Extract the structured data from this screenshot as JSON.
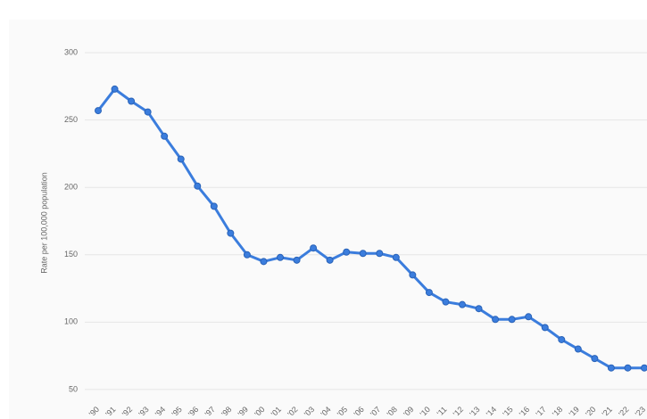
{
  "chart_data": {
    "type": "line",
    "y_label": "Rate per 100,000 population",
    "categories": [
      "'90",
      "'91",
      "'92",
      "'93",
      "'94",
      "'95",
      "'96",
      "'97",
      "'98",
      "'99",
      "'00",
      "'01",
      "'02",
      "'03",
      "'04",
      "'05",
      "'06",
      "'07",
      "'08",
      "'09",
      "'10",
      "'11",
      "'12",
      "'13",
      "'14",
      "'15",
      "'16",
      "'17",
      "'18",
      "'19",
      "'20",
      "'21",
      "'22",
      "'23"
    ],
    "series": [
      {
        "color": "#3b7ddd",
        "values": [
          257,
          273,
          264,
          256,
          238,
          221,
          201,
          186,
          166,
          150,
          145,
          148,
          146,
          155,
          146,
          152,
          151,
          151,
          148,
          135,
          122,
          115,
          113,
          110,
          102,
          102,
          104,
          96,
          87,
          80,
          73,
          66,
          66,
          66
        ]
      }
    ],
    "ylim": [
      40,
      308
    ],
    "yticks": [
      50,
      100,
      150,
      200,
      250,
      300
    ],
    "grid": true
  }
}
